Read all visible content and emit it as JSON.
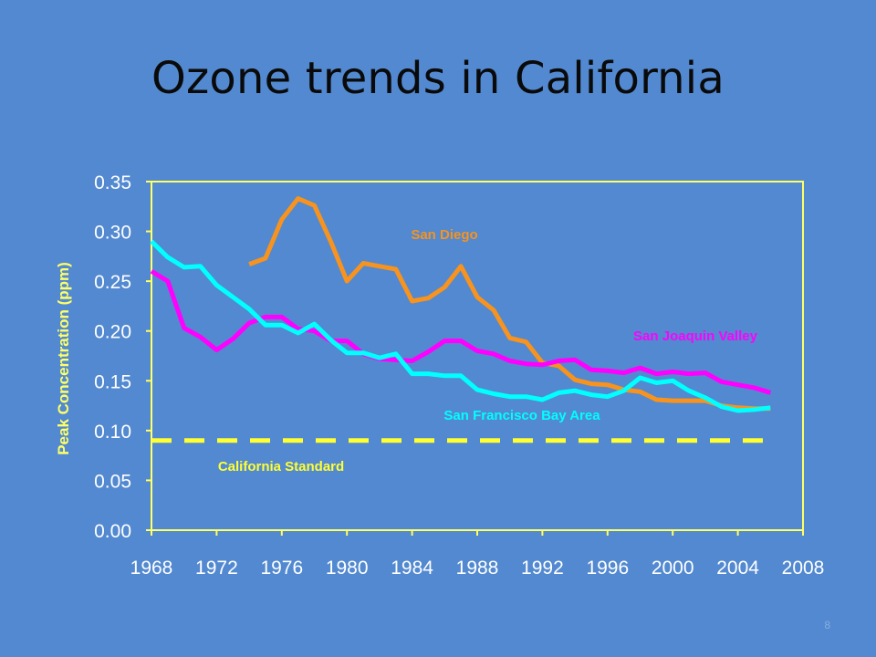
{
  "slide": {
    "title": "Ozone trends in California",
    "number": "8"
  },
  "colors": {
    "background": "#5289D0",
    "axis": "#FFFF66",
    "tick_labels": "#FFFFFF",
    "ylabel": "#FFFF66"
  },
  "chart_data": {
    "type": "line",
    "title": "",
    "xlabel": "",
    "ylabel": "Peak Concentration (ppm)",
    "xlim": [
      1968,
      2008
    ],
    "ylim": [
      0,
      0.35
    ],
    "xticks": [
      "1968",
      "1972",
      "1976",
      "1980",
      "1984",
      "1988",
      "1992",
      "1996",
      "2000",
      "2004",
      "2008"
    ],
    "yticks": [
      "0.00",
      "0.05",
      "0.10",
      "0.15",
      "0.20",
      "0.25",
      "0.30",
      "0.35"
    ],
    "grid": false,
    "legend": "none (series labeled directly on chart)",
    "series": [
      {
        "name": "San Diego",
        "color": "#F7931E",
        "x": [
          1974,
          1975,
          1976,
          1977,
          1978,
          1979,
          1980,
          1981,
          1982,
          1983,
          1984,
          1985,
          1986,
          1987,
          1988,
          1989,
          1990,
          1991,
          1992,
          1993,
          1994,
          1995,
          1996,
          1997,
          1998,
          1999,
          2000,
          2001,
          2002,
          2003,
          2004,
          2005,
          2006
        ],
        "values": [
          0.267,
          0.273,
          0.312,
          0.333,
          0.326,
          0.29,
          0.25,
          0.268,
          0.265,
          0.262,
          0.23,
          0.233,
          0.244,
          0.265,
          0.234,
          0.221,
          0.193,
          0.189,
          0.168,
          0.165,
          0.151,
          0.147,
          0.146,
          0.141,
          0.139,
          0.131,
          0.13,
          0.13,
          0.13,
          0.125,
          0.123,
          0.122,
          0.122
        ]
      },
      {
        "name": "San Joaquin Valley",
        "color": "#FF00FF",
        "x": [
          1968,
          1969,
          1970,
          1971,
          1972,
          1973,
          1974,
          1975,
          1976,
          1977,
          1978,
          1979,
          1980,
          1981,
          1982,
          1983,
          1984,
          1985,
          1986,
          1987,
          1988,
          1989,
          1990,
          1991,
          1992,
          1993,
          1994,
          1995,
          1996,
          1997,
          1998,
          1999,
          2000,
          2001,
          2002,
          2003,
          2004,
          2005,
          2006
        ],
        "values": [
          0.26,
          0.25,
          0.203,
          0.194,
          0.181,
          0.192,
          0.208,
          0.214,
          0.214,
          0.202,
          0.2,
          0.19,
          0.19,
          0.177,
          0.172,
          0.171,
          0.17,
          0.179,
          0.19,
          0.19,
          0.18,
          0.177,
          0.17,
          0.167,
          0.166,
          0.17,
          0.171,
          0.161,
          0.16,
          0.158,
          0.163,
          0.157,
          0.159,
          0.157,
          0.158,
          0.149,
          0.146,
          0.143,
          0.138
        ]
      },
      {
        "name": "San Francisco Bay Area",
        "color": "#00FFFF",
        "x": [
          1968,
          1969,
          1970,
          1971,
          1972,
          1973,
          1974,
          1975,
          1976,
          1977,
          1978,
          1979,
          1980,
          1981,
          1982,
          1983,
          1984,
          1985,
          1986,
          1987,
          1988,
          1989,
          1990,
          1991,
          1992,
          1993,
          1994,
          1995,
          1996,
          1997,
          1998,
          1999,
          2000,
          2001,
          2002,
          2003,
          2004,
          2005,
          2006
        ],
        "values": [
          0.29,
          0.274,
          0.264,
          0.265,
          0.246,
          0.234,
          0.222,
          0.206,
          0.206,
          0.198,
          0.207,
          0.191,
          0.178,
          0.178,
          0.173,
          0.177,
          0.157,
          0.157,
          0.155,
          0.155,
          0.141,
          0.137,
          0.134,
          0.134,
          0.131,
          0.138,
          0.14,
          0.136,
          0.134,
          0.14,
          0.153,
          0.148,
          0.15,
          0.14,
          0.133,
          0.124,
          0.12,
          0.121,
          0.123
        ]
      },
      {
        "name": "California Standard",
        "color": "#FFFF33",
        "dashed": true,
        "x": [
          1968,
          2006
        ],
        "values": [
          0.09,
          0.09
        ]
      }
    ]
  }
}
